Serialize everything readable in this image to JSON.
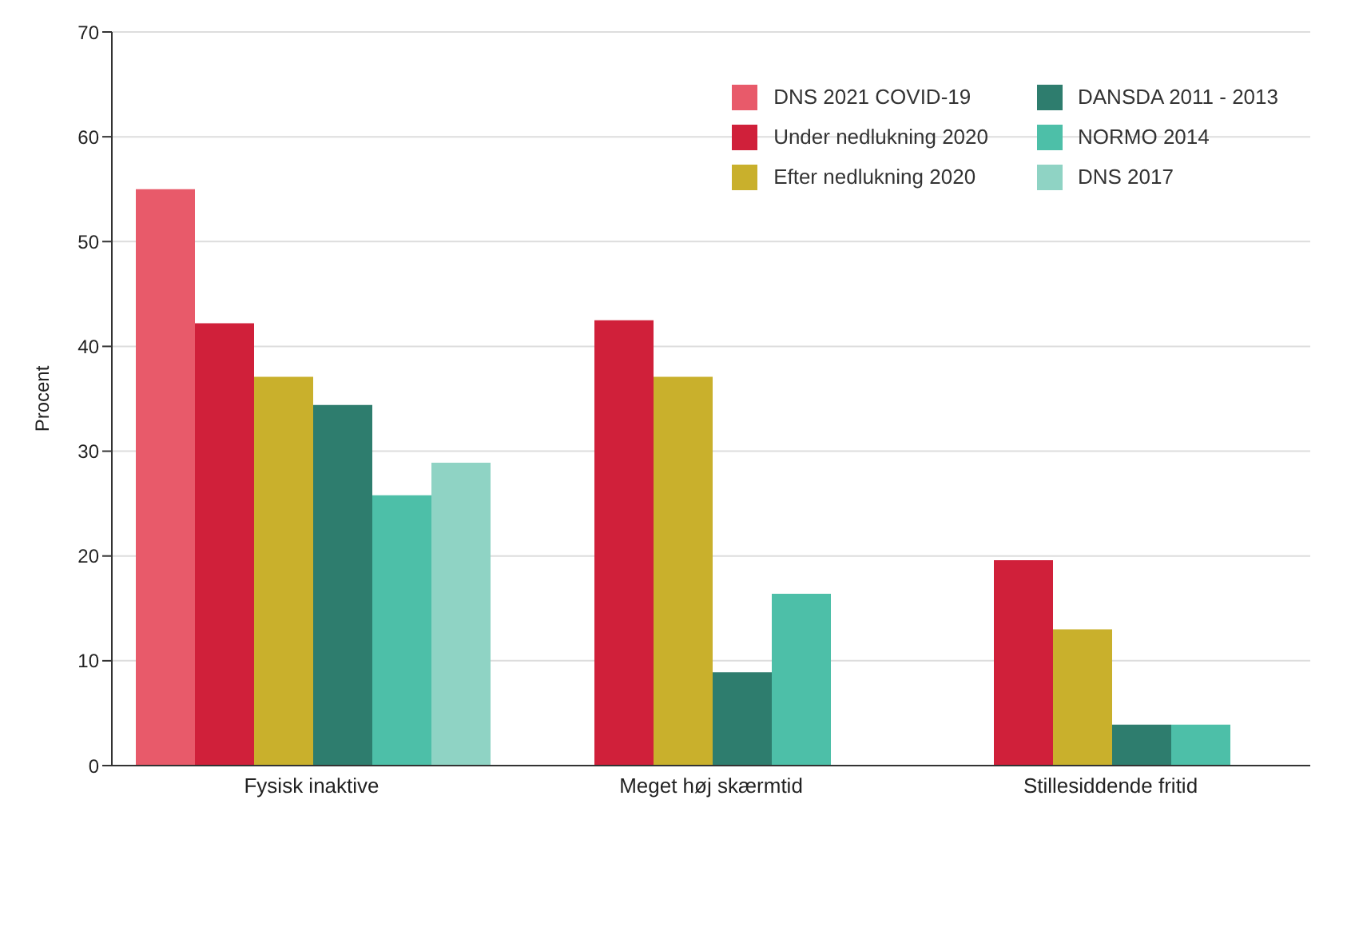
{
  "chart_data": {
    "type": "bar",
    "ylabel": "Procent",
    "categories": [
      "Fysisk inaktive",
      "Meget høj skærmtid",
      "Stillesiddende fritid"
    ],
    "series": [
      {
        "name": "DNS 2021 COVID-19",
        "color": "#e85a6a",
        "values": [
          55,
          null,
          null
        ]
      },
      {
        "name": "Under nedlukning 2020",
        "color": "#d0203a",
        "values": [
          42.2,
          42.5,
          19.6
        ]
      },
      {
        "name": "Efter nedlukning 2020",
        "color": "#c9b02c",
        "values": [
          37.1,
          37.1,
          13
        ]
      },
      {
        "name": "DANSDA 2011 - 2013",
        "color": "#2e7d6e",
        "values": [
          34.4,
          8.9,
          3.9
        ]
      },
      {
        "name": "NORMO 2014",
        "color": "#4dbfa8",
        "values": [
          25.8,
          16.4,
          3.9
        ]
      },
      {
        "name": "DNS 2017",
        "color": "#8fd3c4",
        "values": [
          28.9,
          null,
          null
        ]
      }
    ],
    "ylim": [
      0,
      70
    ],
    "yticks": [
      0,
      10,
      20,
      30,
      40,
      50,
      60,
      70
    ],
    "grid": "y",
    "legend": "top right"
  }
}
